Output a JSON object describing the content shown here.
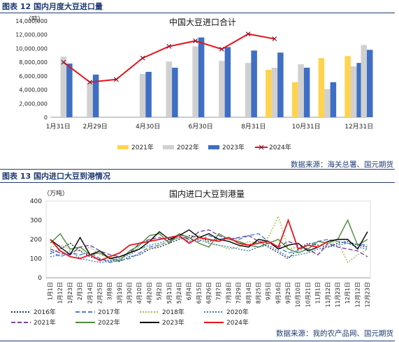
{
  "figures": [
    {
      "label": "图表 12 国内月度大豆进口量",
      "source": "数据来源：海关总署、国元期货"
    },
    {
      "label": "图表 13 国内进口大豆到港情况",
      "source": "数据来源：我的农产品网、国元期货"
    }
  ],
  "chart_data": [
    {
      "type": "bar",
      "title": "中国大豆进口合计",
      "unit": "（吨）",
      "ylim": [
        0,
        14000000
      ],
      "y_ticks": [
        "0",
        "2,000,000",
        "4,000,000",
        "6,000,000",
        "8,000,000",
        "10,000,000",
        "12,000,000",
        "14,000,000"
      ],
      "x_tick_labels": [
        "1月31日",
        "2月29日",
        "4月30日",
        "6月30日",
        "8月31日",
        "10月31日",
        "12月31日"
      ],
      "categories": [
        "1",
        "2",
        "3",
        "4",
        "5",
        "6",
        "7",
        "8",
        "9",
        "10",
        "11",
        "12"
      ],
      "series": [
        {
          "name": "2021年",
          "kind": "bar",
          "color": "#ffd34d",
          "values": [
            null,
            null,
            null,
            null,
            null,
            null,
            null,
            null,
            6900000,
            5100000,
            8600000,
            8900000
          ]
        },
        {
          "name": "2022年",
          "kind": "bar",
          "color": "#d0d0d0",
          "values": [
            8800000,
            5000000,
            null,
            6300000,
            8100000,
            10300000,
            8200000,
            7900000,
            7200000,
            7700000,
            4100000,
            7400000
          ]
        },
        {
          "name": "2023年",
          "kind": "bar",
          "color": "#3e6fc4",
          "values": [
            7800000,
            6200000,
            null,
            6600000,
            7200000,
            11600000,
            10200000,
            9700000,
            9400000,
            7200000,
            5100000,
            7900000
          ]
        },
        {
          "name": "2024年",
          "kind": "line",
          "color": "#e8131b",
          "values": [
            8000000,
            5100000,
            5500000,
            8600000,
            10300000,
            11100000,
            9900000,
            12100000,
            11400000,
            null,
            null,
            null
          ]
        }
      ],
      "extra_bars_note": "",
      "extra_2023_dec_plus": [
        10500000,
        9800000
      ]
    },
    {
      "type": "line",
      "title": "国内进口大豆到港量",
      "unit": "（万吨）",
      "ylim": [
        0,
        400
      ],
      "y_ticks": [
        "0",
        "100",
        "200",
        "300",
        "400"
      ],
      "x_tick_labels": [
        "1月1日",
        "1月12日",
        "1月23日",
        "2月3日",
        "2月14日",
        "2月25日",
        "3月8日",
        "3月19日",
        "3月30日",
        "4月10日",
        "4月20日",
        "5月2日",
        "5月13日",
        "5月24日",
        "6月4日",
        "6月15日",
        "6月26日",
        "7月7日",
        "7月18日",
        "7月29日",
        "8月14日",
        "8月25日",
        "9月5日",
        "9月16日",
        "9月25日",
        "10月10日",
        "10月21日",
        "11月1日",
        "11月12日",
        "11月23日",
        "12月1日",
        "12月12日",
        "12月23日"
      ],
      "series": [
        {
          "name": "2016年",
          "color": "#1f2f5a",
          "dash": "2,2",
          "values": [
            125,
            150,
            180,
            140,
            110,
            95,
            90,
            85,
            110,
            120,
            150,
            160,
            180,
            200,
            220,
            210,
            190,
            200,
            210,
            180,
            170,
            190,
            160,
            130,
            100,
            150,
            180,
            170,
            160,
            180,
            190,
            170,
            160
          ]
        },
        {
          "name": "2017年",
          "color": "#4a7fd4",
          "dash": "6,3",
          "values": [
            140,
            110,
            130,
            120,
            130,
            100,
            80,
            90,
            100,
            130,
            160,
            170,
            190,
            210,
            200,
            190,
            220,
            200,
            210,
            200,
            220,
            230,
            190,
            160,
            130,
            140,
            170,
            190,
            200,
            190,
            180,
            175,
            170
          ]
        },
        {
          "name": "2018年",
          "color": "#9fc04a",
          "dash": "2,2",
          "values": [
            160,
            170,
            150,
            140,
            160,
            120,
            110,
            100,
            130,
            160,
            150,
            170,
            190,
            210,
            200,
            220,
            180,
            170,
            150,
            160,
            190,
            180,
            210,
            320,
            150,
            160,
            140,
            120,
            170,
            190,
            80,
            120,
            150
          ]
        },
        {
          "name": "2020年",
          "color": "#3a78c0",
          "dash": "2,2",
          "values": [
            110,
            120,
            140,
            100,
            90,
            80,
            85,
            100,
            120,
            150,
            170,
            180,
            200,
            210,
            190,
            200,
            180,
            170,
            160,
            150,
            140,
            160,
            170,
            140,
            110,
            120,
            130,
            150,
            160,
            170,
            180,
            160,
            150
          ]
        },
        {
          "name": "2021年",
          "color": "#7a3fa0",
          "dash": "6,3",
          "values": [
            150,
            130,
            120,
            160,
            170,
            140,
            120,
            110,
            130,
            180,
            200,
            210,
            190,
            230,
            200,
            240,
            250,
            220,
            200,
            210,
            220,
            190,
            180,
            160,
            190,
            170,
            150,
            120,
            180,
            160,
            150,
            140,
            110
          ]
        },
        {
          "name": "2022年",
          "color": "#4d8a3a",
          "dash": "",
          "values": [
            180,
            230,
            150,
            160,
            120,
            130,
            100,
            90,
            140,
            170,
            220,
            230,
            180,
            230,
            210,
            180,
            160,
            230,
            200,
            190,
            170,
            160,
            180,
            200,
            150,
            130,
            150,
            190,
            180,
            200,
            300,
            170,
            200
          ]
        },
        {
          "name": "2023年",
          "color": "#000000",
          "dash": "",
          "values": [
            200,
            160,
            120,
            210,
            120,
            140,
            100,
            110,
            130,
            150,
            190,
            240,
            200,
            220,
            250,
            210,
            230,
            200,
            190,
            170,
            160,
            200,
            190,
            150,
            170,
            180,
            140,
            160,
            190,
            200,
            200,
            150,
            240
          ]
        },
        {
          "name": "2024年",
          "color": "#e8131b",
          "dash": "",
          "values": [
            200,
            140,
            110,
            100,
            120,
            90,
            110,
            130,
            170,
            180,
            190,
            200,
            210,
            220,
            180,
            210,
            200,
            190,
            210,
            180,
            170,
            180,
            190,
            160,
            300,
            150,
            170,
            160,
            190,
            null,
            null,
            null,
            null
          ]
        }
      ]
    }
  ]
}
